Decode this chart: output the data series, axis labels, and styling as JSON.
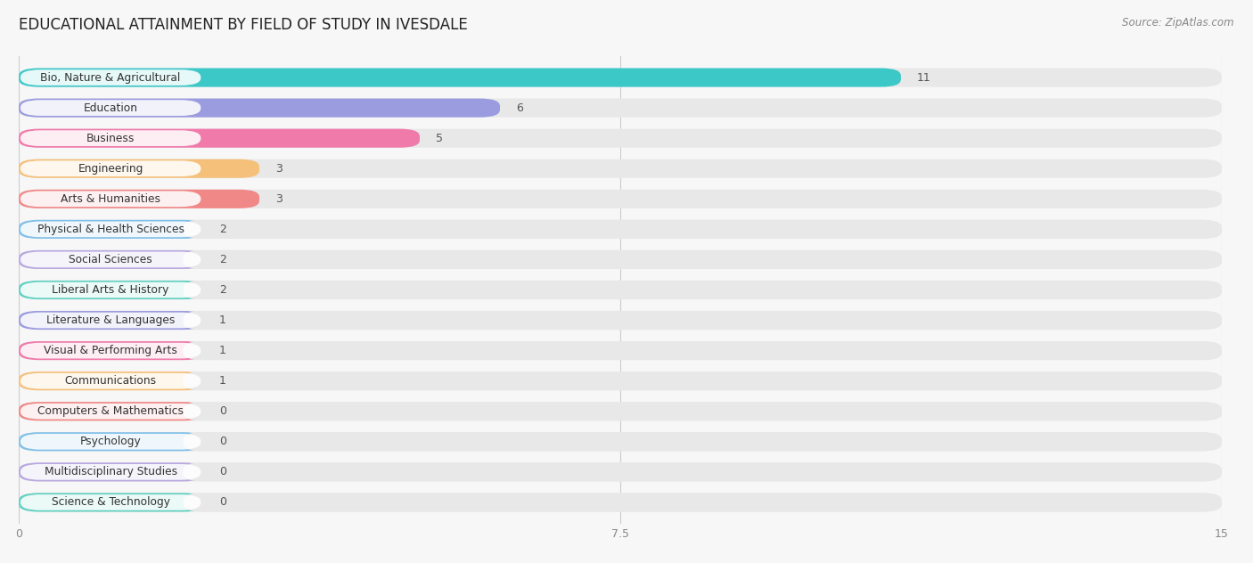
{
  "title": "EDUCATIONAL ATTAINMENT BY FIELD OF STUDY IN IVESDALE",
  "source": "Source: ZipAtlas.com",
  "categories": [
    "Bio, Nature & Agricultural",
    "Education",
    "Business",
    "Engineering",
    "Arts & Humanities",
    "Physical & Health Sciences",
    "Social Sciences",
    "Liberal Arts & History",
    "Literature & Languages",
    "Visual & Performing Arts",
    "Communications",
    "Computers & Mathematics",
    "Psychology",
    "Multidisciplinary Studies",
    "Science & Technology"
  ],
  "values": [
    11,
    6,
    5,
    3,
    3,
    2,
    2,
    2,
    1,
    1,
    1,
    0,
    0,
    0,
    0
  ],
  "bar_colors": [
    "#3dc8c8",
    "#9b9be0",
    "#f07aaa",
    "#f5c07a",
    "#f08888",
    "#80c0e8",
    "#b8a8e0",
    "#60d0c0",
    "#9b9be0",
    "#f07aaa",
    "#f5c07a",
    "#f08888",
    "#80c0e8",
    "#b8a8e0",
    "#60d0c0"
  ],
  "bg_color": "#f7f7f7",
  "bar_bg_color": "#e8e8e8",
  "xlim": [
    0,
    15
  ],
  "xticks": [
    0,
    7.5,
    15
  ],
  "title_fontsize": 12,
  "label_fontsize": 8.8,
  "value_fontsize": 9
}
